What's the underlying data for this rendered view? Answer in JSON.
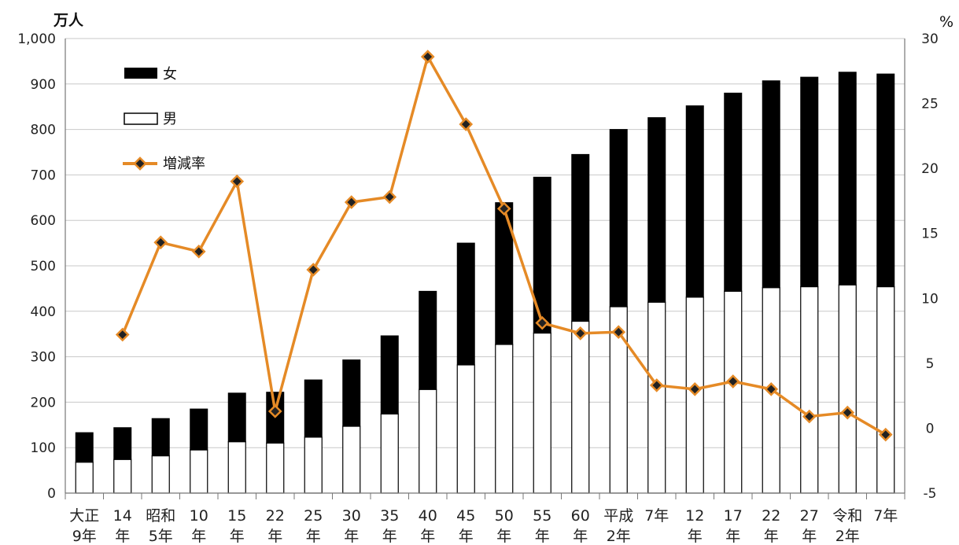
{
  "chart_data": {
    "type": "bar+line",
    "title": "",
    "y_left_unit": "万人",
    "y_right_unit": "%",
    "ylim_left": [
      0,
      1000
    ],
    "yticks_left": [
      "0",
      "100",
      "200",
      "300",
      "400",
      "500",
      "600",
      "700",
      "800",
      "900",
      "1,000"
    ],
    "ylim_right": [
      -5,
      30
    ],
    "yticks_right": [
      "-5",
      "0",
      "5",
      "10",
      "15",
      "20",
      "25",
      "30"
    ],
    "categories": [
      [
        "大正",
        "9年"
      ],
      [
        "14",
        "年"
      ],
      [
        "昭和",
        "5年"
      ],
      [
        "10",
        "年"
      ],
      [
        "15",
        "年"
      ],
      [
        "22",
        "年"
      ],
      [
        "25",
        "年"
      ],
      [
        "30",
        "年"
      ],
      [
        "35",
        "年"
      ],
      [
        "40",
        "年"
      ],
      [
        "45",
        "年"
      ],
      [
        "50",
        "年"
      ],
      [
        "55",
        "年"
      ],
      [
        "60",
        "年"
      ],
      [
        "平成",
        "2年"
      ],
      [
        "7年",
        ""
      ],
      [
        "12",
        "年"
      ],
      [
        "17",
        "年"
      ],
      [
        "22",
        "年"
      ],
      [
        "27",
        "年"
      ],
      [
        "令和",
        "2年"
      ],
      [
        "7年",
        ""
      ]
    ],
    "series": [
      {
        "name": "女",
        "kind": "bar-stacked",
        "color": "#000000",
        "values": [
          65,
          70,
          82,
          90,
          107,
          112,
          126,
          146,
          172,
          216,
          268,
          312,
          343,
          367,
          390,
          406,
          421,
          436,
          455,
          461,
          468,
          468
        ]
      },
      {
        "name": "男",
        "kind": "bar-stacked",
        "color": "#ffffff",
        "values": [
          68,
          74,
          82,
          95,
          113,
          110,
          123,
          147,
          174,
          228,
          282,
          327,
          352,
          378,
          410,
          420,
          431,
          444,
          452,
          454,
          458,
          454
        ]
      },
      {
        "name": "増減率",
        "kind": "line",
        "axis": "right",
        "color": "#e58a26",
        "values": [
          null,
          7.2,
          14.3,
          13.6,
          19.0,
          1.3,
          12.2,
          17.4,
          17.8,
          28.6,
          23.4,
          16.9,
          8.1,
          7.3,
          7.4,
          3.3,
          3.0,
          3.6,
          3.0,
          0.9,
          1.2,
          -0.5
        ]
      }
    ],
    "grid": "horizontal",
    "legend_position": "top-left"
  },
  "colors": {
    "male_fill": "#ffffff",
    "female_fill": "#000000",
    "line": "#e58a26",
    "marker_center": "#222222",
    "grid": "#c8c8c8",
    "right_axis": "#c0504d"
  }
}
